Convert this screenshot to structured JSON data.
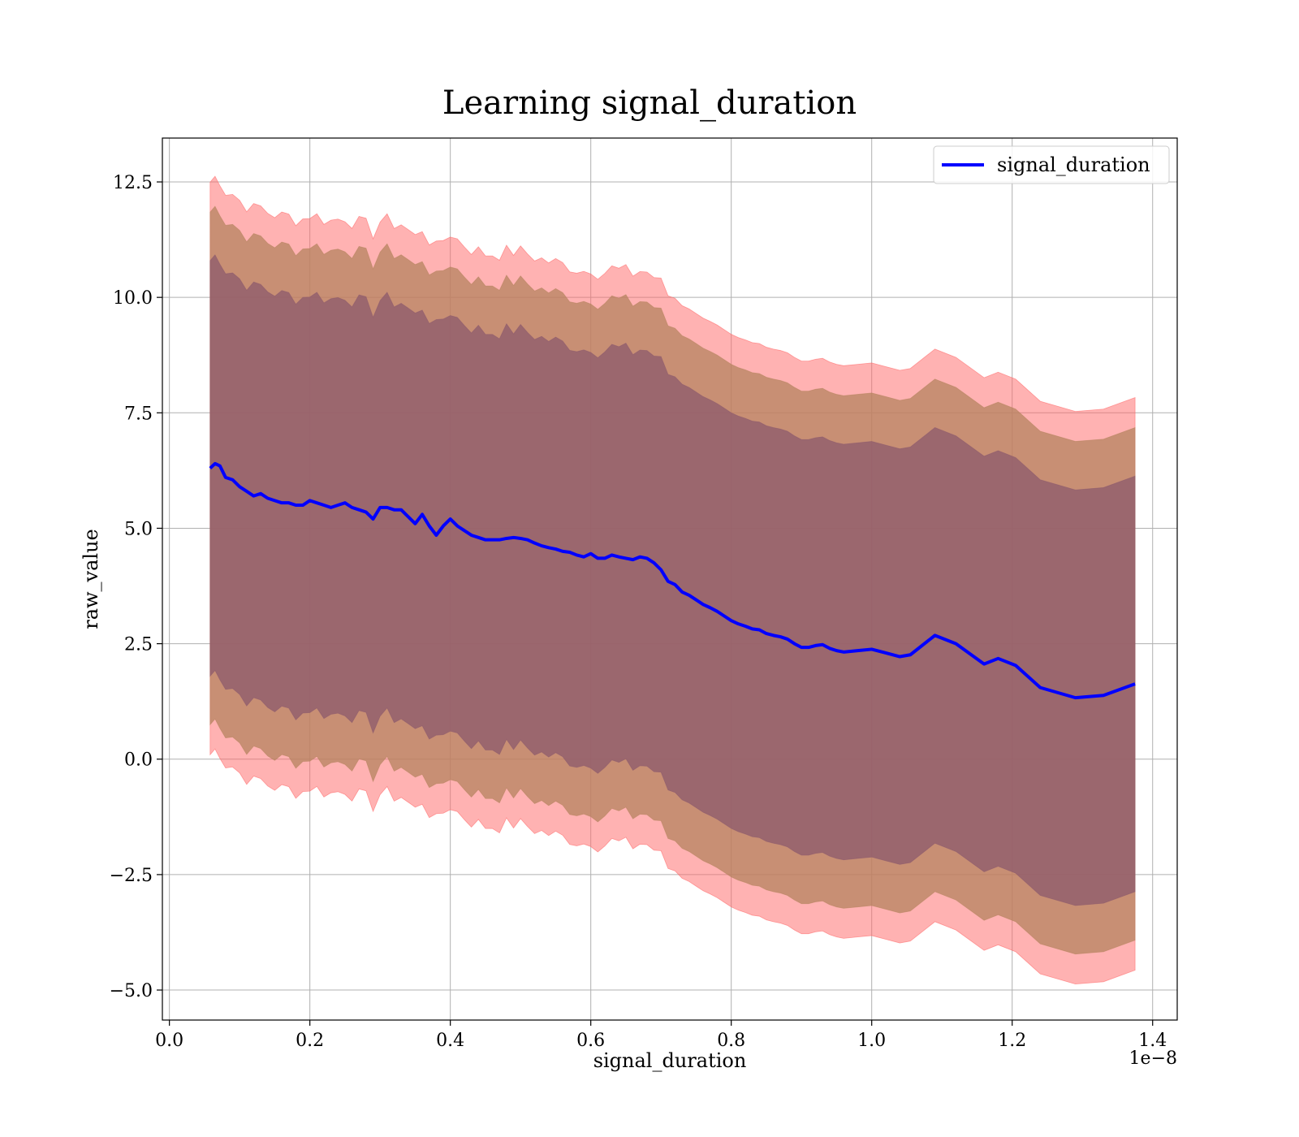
{
  "chart_data": {
    "type": "line",
    "title": "Learning signal_duration",
    "xlabel": "signal_duration",
    "ylabel": "raw_value",
    "x_multiplier_label": "1e−8",
    "xlim": [
      -0.01,
      1.435
    ],
    "ylim": [
      -5.65,
      13.45
    ],
    "grid": true,
    "legend_position": "top-right",
    "x_ticks": [
      {
        "value": 0.0,
        "label": "0.0"
      },
      {
        "value": 0.2,
        "label": "0.2"
      },
      {
        "value": 0.4,
        "label": "0.4"
      },
      {
        "value": 0.6,
        "label": "0.6"
      },
      {
        "value": 0.8,
        "label": "0.8"
      },
      {
        "value": 1.0,
        "label": "1.0"
      },
      {
        "value": 1.2,
        "label": "1.2"
      },
      {
        "value": 1.4,
        "label": "1.4"
      }
    ],
    "y_ticks": [
      {
        "value": -5.0,
        "label": "−5.0"
      },
      {
        "value": -2.5,
        "label": "−2.5"
      },
      {
        "value": 0.0,
        "label": "0.0"
      },
      {
        "value": 2.5,
        "label": "2.5"
      },
      {
        "value": 5.0,
        "label": "5.0"
      },
      {
        "value": 7.5,
        "label": "7.5"
      },
      {
        "value": 10.0,
        "label": "10.0"
      },
      {
        "value": 12.5,
        "label": "12.5"
      }
    ],
    "series": [
      {
        "name": "signal_duration",
        "color": "#0000ff",
        "x": [
          0.058,
          0.065,
          0.072,
          0.08,
          0.09,
          0.1,
          0.11,
          0.12,
          0.13,
          0.14,
          0.15,
          0.16,
          0.17,
          0.18,
          0.19,
          0.2,
          0.21,
          0.22,
          0.23,
          0.24,
          0.25,
          0.26,
          0.27,
          0.28,
          0.29,
          0.3,
          0.31,
          0.32,
          0.33,
          0.34,
          0.35,
          0.36,
          0.37,
          0.38,
          0.39,
          0.4,
          0.41,
          0.42,
          0.43,
          0.44,
          0.45,
          0.46,
          0.47,
          0.48,
          0.49,
          0.5,
          0.51,
          0.52,
          0.53,
          0.54,
          0.55,
          0.56,
          0.57,
          0.58,
          0.59,
          0.6,
          0.61,
          0.62,
          0.63,
          0.64,
          0.65,
          0.66,
          0.67,
          0.68,
          0.69,
          0.7,
          0.71,
          0.72,
          0.73,
          0.74,
          0.75,
          0.76,
          0.77,
          0.78,
          0.79,
          0.8,
          0.81,
          0.82,
          0.83,
          0.84,
          0.85,
          0.86,
          0.87,
          0.88,
          0.89,
          0.9,
          0.91,
          0.92,
          0.93,
          0.94,
          0.95,
          0.96,
          0.98,
          1.0,
          1.02,
          1.04,
          1.055,
          1.09,
          1.12,
          1.16,
          1.18,
          1.205,
          1.24,
          1.29,
          1.33,
          1.375
        ],
        "y": [
          6.3,
          6.4,
          6.35,
          6.1,
          6.05,
          5.9,
          5.8,
          5.7,
          5.75,
          5.65,
          5.6,
          5.55,
          5.55,
          5.5,
          5.5,
          5.6,
          5.55,
          5.5,
          5.45,
          5.5,
          5.55,
          5.45,
          5.4,
          5.35,
          5.2,
          5.45,
          5.45,
          5.4,
          5.4,
          5.25,
          5.1,
          5.3,
          5.05,
          4.85,
          5.05,
          5.2,
          5.05,
          4.95,
          4.85,
          4.8,
          4.75,
          4.75,
          4.75,
          4.78,
          4.8,
          4.78,
          4.75,
          4.68,
          4.62,
          4.58,
          4.55,
          4.5,
          4.48,
          4.42,
          4.38,
          4.45,
          4.35,
          4.35,
          4.42,
          4.38,
          4.35,
          4.32,
          4.38,
          4.35,
          4.25,
          4.1,
          3.85,
          3.78,
          3.62,
          3.55,
          3.45,
          3.35,
          3.28,
          3.2,
          3.1,
          3.0,
          2.93,
          2.88,
          2.82,
          2.8,
          2.72,
          2.68,
          2.65,
          2.6,
          2.5,
          2.42,
          2.42,
          2.46,
          2.48,
          2.4,
          2.35,
          2.32,
          2.35,
          2.38,
          2.3,
          2.22,
          2.26,
          2.68,
          2.5,
          2.06,
          2.18,
          2.03,
          1.55,
          1.33,
          1.38,
          1.63
        ]
      }
    ],
    "bands": [
      {
        "color": "#ff6666",
        "upper_offset": 6.2,
        "lower_offset": -6.2
      },
      {
        "color": "#b5835f",
        "upper_offset": 5.55,
        "lower_offset": -5.55
      },
      {
        "color": "#8c5a6c",
        "upper_offset": 4.5,
        "lower_offset": -4.5
      }
    ]
  }
}
